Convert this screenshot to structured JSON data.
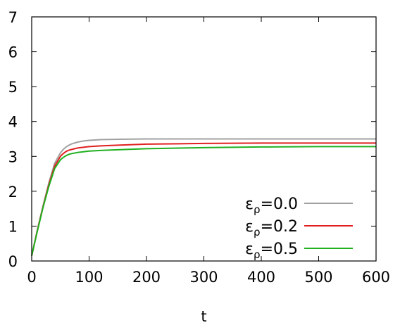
{
  "chart_data": {
    "type": "line",
    "title": "",
    "xlabel": "t",
    "ylabel": "",
    "xlim": [
      0,
      600
    ],
    "ylim": [
      0,
      7
    ],
    "xticks": [
      "0",
      "100",
      "200",
      "300",
      "400",
      "500",
      "600"
    ],
    "yticks": [
      "0",
      "1",
      "2",
      "3",
      "4",
      "5",
      "6",
      "7"
    ],
    "grid": false,
    "legend_position": "bottom-right",
    "series": [
      {
        "name": "ε_ρ=0.0",
        "legend_base": "ε",
        "legend_sub": "ρ",
        "legend_value": "=0.0",
        "color": "#a0a0a0",
        "x": [
          0,
          10,
          20,
          30,
          40,
          50,
          55,
          60,
          65,
          70,
          80,
          90,
          100,
          120,
          150,
          200,
          300,
          400,
          500,
          600
        ],
        "y": [
          0.15,
          0.9,
          1.6,
          2.25,
          2.8,
          3.1,
          3.2,
          3.27,
          3.32,
          3.36,
          3.41,
          3.44,
          3.46,
          3.48,
          3.49,
          3.5,
          3.5,
          3.5,
          3.5,
          3.5
        ]
      },
      {
        "name": "ε_ρ=0.2",
        "legend_base": "ε",
        "legend_sub": "ρ",
        "legend_value": "=0.2",
        "color": "#e02020",
        "x": [
          0,
          10,
          20,
          30,
          40,
          50,
          55,
          60,
          65,
          70,
          80,
          90,
          100,
          120,
          150,
          200,
          300,
          400,
          500,
          600
        ],
        "y": [
          0.15,
          0.88,
          1.57,
          2.2,
          2.72,
          3.0,
          3.08,
          3.14,
          3.18,
          3.2,
          3.24,
          3.26,
          3.28,
          3.3,
          3.32,
          3.35,
          3.37,
          3.38,
          3.38,
          3.38
        ]
      },
      {
        "name": "ε_ρ=0.5",
        "legend_base": "ε",
        "legend_sub": "ρ",
        "legend_value": "=0.5",
        "color": "#20b020",
        "x": [
          0,
          10,
          20,
          30,
          40,
          50,
          55,
          60,
          65,
          70,
          80,
          90,
          100,
          120,
          150,
          200,
          300,
          400,
          500,
          600
        ],
        "y": [
          0.15,
          0.86,
          1.55,
          2.15,
          2.65,
          2.9,
          2.97,
          3.02,
          3.06,
          3.08,
          3.11,
          3.13,
          3.15,
          3.17,
          3.19,
          3.22,
          3.25,
          3.27,
          3.28,
          3.28
        ]
      }
    ]
  }
}
